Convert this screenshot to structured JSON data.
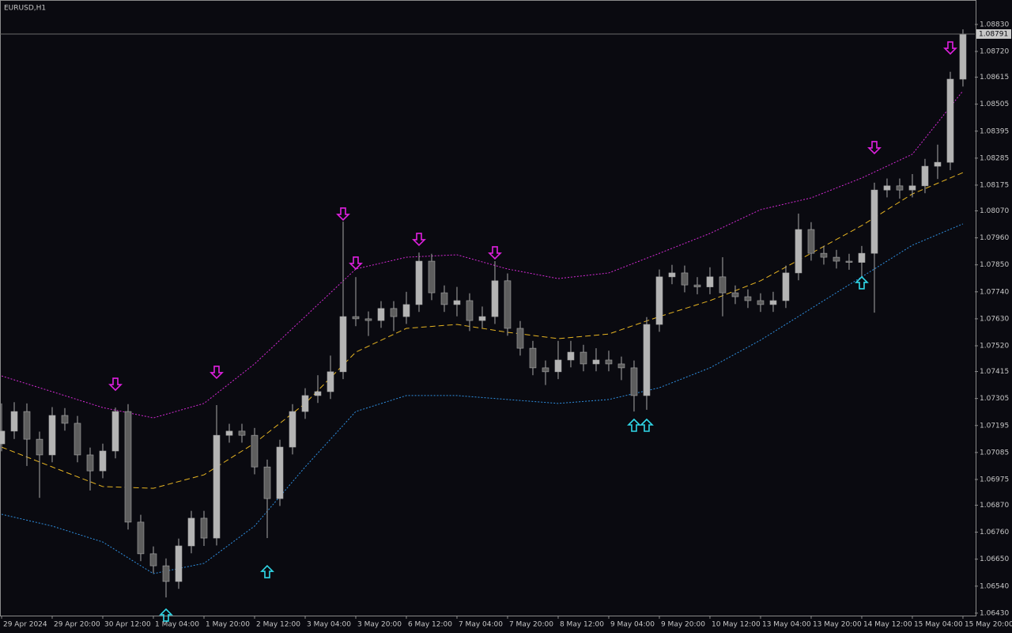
{
  "chart_data": {
    "type": "candlestick",
    "title": "EURUSD,H1",
    "xlim": [
      -0.125,
      76.94
    ],
    "ylim": [
      1.0642,
      1.0892
    ],
    "xticks": [
      {
        "value": 0,
        "label": "29 Apr 2024"
      },
      {
        "value": 4,
        "label": "29 Apr 20:00"
      },
      {
        "value": 8,
        "label": "30 Apr 12:00"
      },
      {
        "value": 12,
        "label": "1 May 04:00"
      },
      {
        "value": 16,
        "label": "1 May 20:00"
      },
      {
        "value": 20,
        "label": "2 May 12:00"
      },
      {
        "value": 24,
        "label": "3 May 04:00"
      },
      {
        "value": 28,
        "label": "3 May 20:00"
      },
      {
        "value": 32,
        "label": "6 May 12:00"
      },
      {
        "value": 36,
        "label": "7 May 04:00"
      },
      {
        "value": 40,
        "label": "7 May 20:00"
      },
      {
        "value": 44,
        "label": "8 May 12:00"
      },
      {
        "value": 48,
        "label": "9 May 04:00"
      },
      {
        "value": 52,
        "label": "9 May 20:00"
      },
      {
        "value": 56,
        "label": "10 May 12:00"
      },
      {
        "value": 60,
        "label": "13 May 04:00"
      },
      {
        "value": 64,
        "label": "13 May 20:00"
      },
      {
        "value": 68,
        "label": "14 May 12:00"
      },
      {
        "value": 72,
        "label": "15 May 04:00"
      },
      {
        "value": 76,
        "label": "15 May 20:00"
      }
    ],
    "yticks": [
      {
        "value": 1.0883,
        "label": "1.08830"
      },
      {
        "value": 1.0872,
        "label": "1.08720"
      },
      1.08615,
      1.08505,
      1.08395,
      1.08285,
      1.08175,
      {
        "value": 1.0807,
        "label": "1.08070"
      },
      {
        "value": 1.0796,
        "label": "1.07960"
      },
      {
        "value": 1.0785,
        "label": "1.07850"
      },
      {
        "value": 1.0774,
        "label": "1.07740"
      },
      {
        "value": 1.0763,
        "label": "1.07630"
      },
      {
        "value": 1.0752,
        "label": "1.07520"
      },
      1.07415,
      1.07305,
      1.07195,
      1.07085,
      1.06975,
      {
        "value": 1.0687,
        "label": "1.06870"
      },
      {
        "value": 1.0676,
        "label": "1.06760"
      },
      {
        "value": 1.0665,
        "label": "1.06650"
      },
      {
        "value": 1.0654,
        "label": "1.06540"
      },
      {
        "value": 1.0643,
        "label": "1.06430"
      }
    ],
    "last_price": 1.08791,
    "open": [
      1.0712,
      1.07172,
      1.07252,
      1.07139,
      1.07075,
      1.07236,
      1.07204,
      1.07075,
      1.0701,
      1.07091,
      1.07252,
      1.06801,
      1.06672,
      1.06623,
      1.06559,
      1.06704,
      1.06817,
      1.06736,
      1.07155,
      1.07172,
      1.07155,
      1.07026,
      1.06897,
      1.07107,
      1.07252,
      1.07317,
      1.07333,
      1.07414,
      1.07639,
      1.0763,
      1.07623,
      1.07672,
      1.07639,
      1.07688,
      1.07865,
      1.07736,
      1.07688,
      1.07704,
      1.07623,
      1.07639,
      1.07785,
      1.07591,
      1.0751,
      1.0743,
      1.07414,
      1.07462,
      1.07494,
      1.07446,
      1.07462,
      1.07446,
      1.0743,
      1.07317,
      1.07607,
      1.07801,
      1.07817,
      1.07768,
      1.0776,
      1.07801,
      1.07736,
      1.0772,
      1.07704,
      1.07688,
      1.07704,
      1.07817,
      1.07994,
      1.07897,
      1.07881,
      1.07865,
      1.0786,
      1.07897,
      1.08155,
      1.08172,
      1.08155,
      1.08172,
      1.08252,
      1.08268,
      1.08607
    ],
    "high": [
      1.07285,
      1.0729,
      1.07285,
      1.0717,
      1.0727,
      1.07266,
      1.07234,
      1.07105,
      1.07121,
      1.07268,
      1.07282,
      1.06831,
      1.06702,
      1.06653,
      1.06734,
      1.06847,
      1.06847,
      1.07278,
      1.07202,
      1.07202,
      1.07185,
      1.07056,
      1.07137,
      1.07282,
      1.07347,
      1.074,
      1.0748,
      1.08026,
      1.078,
      1.0766,
      1.07702,
      1.07702,
      1.0774,
      1.079,
      1.07895,
      1.07766,
      1.0776,
      1.07734,
      1.0768,
      1.07865,
      1.07815,
      1.07621,
      1.0754,
      1.0746,
      1.0754,
      1.0754,
      1.07524,
      1.0751,
      1.075,
      1.07476,
      1.0746,
      1.07637,
      1.07831,
      1.0785,
      1.07847,
      1.078,
      1.0784,
      1.07881,
      1.07766,
      1.0775,
      1.07734,
      1.0774,
      1.07847,
      1.08059,
      1.08024,
      1.07927,
      1.07911,
      1.07895,
      1.07927,
      1.08185,
      1.08202,
      1.08202,
      1.0822,
      1.08282,
      1.0834,
      1.08637,
      1.0881
    ],
    "low": [
      1.0709,
      1.0714,
      1.0703,
      1.069,
      1.07045,
      1.07174,
      1.07045,
      1.0693,
      1.0698,
      1.07061,
      1.06771,
      1.06642,
      1.06593,
      1.06494,
      1.06529,
      1.06674,
      1.06704,
      1.06706,
      1.07125,
      1.07125,
      1.06996,
      1.06736,
      1.06867,
      1.07077,
      1.07222,
      1.07287,
      1.07303,
      1.07384,
      1.076,
      1.0756,
      1.07593,
      1.0758,
      1.07609,
      1.07658,
      1.07706,
      1.07658,
      1.0764,
      1.0758,
      1.07593,
      1.07609,
      1.07561,
      1.0748,
      1.074,
      1.0736,
      1.07384,
      1.07432,
      1.07416,
      1.07416,
      1.07416,
      1.0738,
      1.07252,
      1.07259,
      1.07577,
      1.07771,
      1.07738,
      1.0773,
      1.0773,
      1.0764,
      1.0769,
      1.07674,
      1.07658,
      1.07658,
      1.07674,
      1.07787,
      1.07867,
      1.07851,
      1.07835,
      1.0783,
      1.078,
      1.07655,
      1.08125,
      1.0812,
      1.08125,
      1.08142,
      1.082,
      1.08236,
      1.08577
    ],
    "close": [
      1.07172,
      1.07252,
      1.07139,
      1.07075,
      1.07236,
      1.07204,
      1.07075,
      1.0701,
      1.07091,
      1.07252,
      1.06801,
      1.06672,
      1.06623,
      1.06559,
      1.06704,
      1.06817,
      1.06736,
      1.07155,
      1.07172,
      1.07155,
      1.07026,
      1.06897,
      1.07107,
      1.07252,
      1.07317,
      1.07333,
      1.07414,
      1.07639,
      1.0763,
      1.07623,
      1.07672,
      1.07639,
      1.07688,
      1.07865,
      1.07736,
      1.07688,
      1.07704,
      1.07623,
      1.07639,
      1.07785,
      1.07591,
      1.0751,
      1.0743,
      1.07414,
      1.07462,
      1.07494,
      1.07446,
      1.07462,
      1.07446,
      1.0743,
      1.07317,
      1.07607,
      1.07801,
      1.07817,
      1.07768,
      1.0776,
      1.07801,
      1.07736,
      1.0772,
      1.07704,
      1.07688,
      1.07704,
      1.07817,
      1.07994,
      1.07897,
      1.07881,
      1.07865,
      1.0786,
      1.07897,
      1.08155,
      1.08172,
      1.08155,
      1.08172,
      1.08252,
      1.08268,
      1.08607,
      1.08791
    ],
    "series": [
      {
        "color": "#d42ad4",
        "dash": "2 2",
        "x": [
          0,
          4,
          8,
          12,
          16,
          20,
          24,
          28,
          32,
          36,
          40,
          44,
          48,
          52,
          56,
          60,
          64,
          68,
          72,
          76
        ],
        "values": [
          1.07397,
          1.07333,
          1.07268,
          1.07226,
          1.07285,
          1.07446,
          1.07639,
          1.07833,
          1.07881,
          1.07891,
          1.07833,
          1.07794,
          1.07817,
          1.07897,
          1.07978,
          1.08075,
          1.08123,
          1.08204,
          1.08301,
          1.08559
        ]
      },
      {
        "color": "#e6b422",
        "dash": "7 4",
        "x": [
          0,
          4,
          8,
          12,
          16,
          20,
          24,
          28,
          32,
          36,
          40,
          44,
          48,
          52,
          56,
          60,
          64,
          68,
          72,
          76
        ],
        "values": [
          1.07107,
          1.07026,
          1.06946,
          1.06939,
          1.06994,
          1.07123,
          1.07285,
          1.07494,
          1.07591,
          1.07607,
          1.07575,
          1.07549,
          1.07568,
          1.07639,
          1.07704,
          1.07785,
          1.07897,
          1.0801,
          1.08139,
          1.08226
        ]
      },
      {
        "color": "#2f8fe0",
        "dash": "2 2",
        "x": [
          0,
          4,
          8,
          12,
          16,
          20,
          24,
          28,
          32,
          36,
          40,
          44,
          48,
          52,
          56,
          60,
          64,
          68,
          72,
          76
        ],
        "values": [
          1.06833,
          1.06785,
          1.0672,
          1.06591,
          1.06633,
          1.06785,
          1.07026,
          1.07252,
          1.07317,
          1.07317,
          1.07301,
          1.07285,
          1.07301,
          1.07349,
          1.0743,
          1.07543,
          1.07672,
          1.07801,
          1.0793,
          1.08017
        ]
      }
    ],
    "down_arrows": {
      "color": "#e020e0",
      "x": [
        9,
        17,
        27,
        28,
        33,
        39,
        69,
        75
      ],
      "values": [
        1.07339,
        1.07388,
        1.08033,
        1.07833,
        1.0793,
        1.07875,
        1.08304,
        1.0871
      ]
    },
    "up_arrows": {
      "color": "#30d8e8",
      "x": [
        13,
        21,
        50,
        51,
        68
      ],
      "values": [
        1.06446,
        1.06623,
        1.0722,
        1.0722,
        1.07801
      ]
    }
  }
}
